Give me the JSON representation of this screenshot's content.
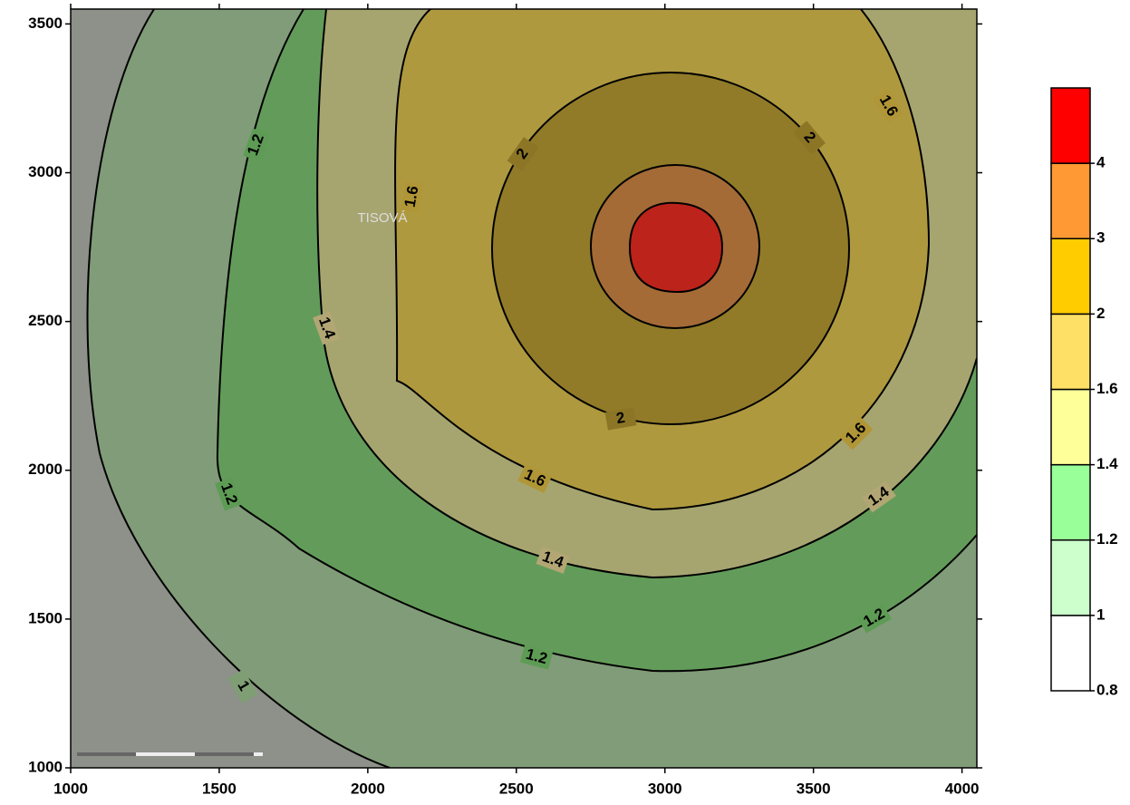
{
  "chart_data": {
    "type": "contour",
    "xlim": [
      1000,
      4050
    ],
    "ylim": [
      1000,
      3550
    ],
    "xticks": [
      1000,
      1500,
      2000,
      2500,
      3000,
      3500,
      4000
    ],
    "yticks": [
      1000,
      1500,
      2000,
      2500,
      3000,
      3500
    ],
    "place_label": "TISOVÁ",
    "background": "#8d918a",
    "contours": [
      {
        "level": 1,
        "fill": "#7f9e74"
      },
      {
        "level": 1.2,
        "fill": "#5e9c55"
      },
      {
        "level": 1.4,
        "fill": "#b2a774"
      },
      {
        "level": 1.6,
        "fill": "#b09636"
      },
      {
        "level": 2,
        "fill": "#8c7626"
      },
      {
        "level": 3,
        "fill": "#a7683a"
      },
      {
        "level": 4,
        "fill": "#bf1616"
      }
    ],
    "legend": {
      "levels": [
        0.8,
        1,
        1.2,
        1.4,
        1.6,
        2,
        3,
        4
      ],
      "colors": [
        "#ffffff",
        "#ccffcc",
        "#99ff99",
        "#ffff99",
        "#ffe066",
        "#ffcc00",
        "#ff9933",
        "#ff0000"
      ]
    }
  }
}
